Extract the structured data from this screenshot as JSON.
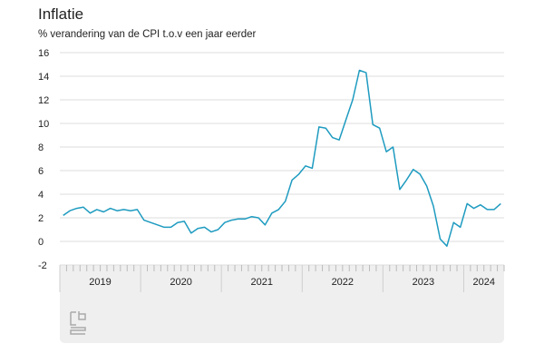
{
  "chart_data": {
    "type": "line",
    "title": "Inflatie",
    "subtitle": "% verandering van de CPI t.o.v een jaar eerder",
    "ylim": [
      -2,
      16
    ],
    "yticks": [
      "16",
      "14",
      "12",
      "10",
      "8",
      "6",
      "4",
      "2",
      "0",
      "-2"
    ],
    "year_labels": [
      "2019",
      "2020",
      "2021",
      "2022",
      "2023",
      "2024"
    ],
    "x_start": "2019-01",
    "frequency": "monthly",
    "grid": true,
    "series": [
      {
        "color": "#1e9bc0",
        "values": [
          2.2,
          2.6,
          2.8,
          2.9,
          2.4,
          2.7,
          2.5,
          2.8,
          2.6,
          2.7,
          2.6,
          2.7,
          1.8,
          1.6,
          1.4,
          1.2,
          1.2,
          1.6,
          1.7,
          0.7,
          1.1,
          1.2,
          0.8,
          1.0,
          1.6,
          1.8,
          1.9,
          1.9,
          2.1,
          2.0,
          1.4,
          2.4,
          2.7,
          3.4,
          5.2,
          5.7,
          6.4,
          6.2,
          9.7,
          9.6,
          8.8,
          8.6,
          10.3,
          12.0,
          14.5,
          14.3,
          9.9,
          9.6,
          7.6,
          8.0,
          4.4,
          5.2,
          6.1,
          5.7,
          4.7,
          3.0,
          0.2,
          -0.4,
          1.6,
          1.2,
          3.2,
          2.8,
          3.1,
          2.7,
          2.7,
          3.2
        ]
      }
    ]
  },
  "logo": "cbs"
}
